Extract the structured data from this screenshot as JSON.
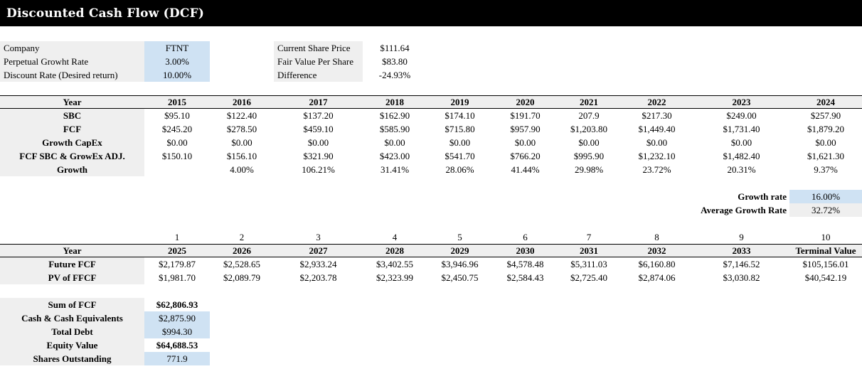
{
  "title": "Discounted Cash Flow (DCF)",
  "colors": {
    "input_blue": "#cfe2f3",
    "label_gray": "#efefef",
    "titlebar_black": "#000000"
  },
  "inputs": {
    "rows": [
      {
        "label": "Company",
        "value": "FTNT"
      },
      {
        "label": "Perpetual Growht Rate",
        "value": "3.00%"
      },
      {
        "label": "Discount Rate (Desired return)",
        "value": "10.00%"
      }
    ]
  },
  "valuation": {
    "rows": [
      {
        "label": "Current Share Price",
        "value": "$111.64"
      },
      {
        "label": "Fair Value Per Share",
        "value": "$83.80"
      },
      {
        "label": "Difference",
        "value": "-24.93%"
      }
    ]
  },
  "table1": {
    "row_header": "Year",
    "years": [
      "2015",
      "2016",
      "2017",
      "2018",
      "2019",
      "2020",
      "2021",
      "2022",
      "2023",
      "2024"
    ],
    "rows": [
      {
        "label": "SBC",
        "values": [
          "$95.10",
          "$122.40",
          "$137.20",
          "$162.90",
          "$174.10",
          "$191.70",
          "207.9",
          "$217.30",
          "$249.00",
          "$257.90"
        ]
      },
      {
        "label": "FCF",
        "values": [
          "$245.20",
          "$278.50",
          "$459.10",
          "$585.90",
          "$715.80",
          "$957.90",
          "$1,203.80",
          "$1,449.40",
          "$1,731.40",
          "$1,879.20"
        ]
      },
      {
        "label": "Growth CapEx",
        "values": [
          "$0.00",
          "$0.00",
          "$0.00",
          "$0.00",
          "$0.00",
          "$0.00",
          "$0.00",
          "$0.00",
          "$0.00",
          "$0.00"
        ]
      },
      {
        "label": "FCF SBC & GrowEx ADJ.",
        "values": [
          "$150.10",
          "$156.10",
          "$321.90",
          "$423.00",
          "$541.70",
          "$766.20",
          "$995.90",
          "$1,232.10",
          "$1,482.40",
          "$1,621.30"
        ]
      },
      {
        "label": "Growth",
        "values": [
          "",
          "4.00%",
          "106.21%",
          "31.41%",
          "28.06%",
          "41.44%",
          "29.98%",
          "23.72%",
          "20.31%",
          "9.37%"
        ]
      }
    ]
  },
  "growth": {
    "rate_label": "Growth rate",
    "rate_value": "16.00%",
    "avg_label": "Average Growth Rate",
    "avg_value": "32.72%"
  },
  "table2": {
    "index_row": [
      "1",
      "2",
      "3",
      "4",
      "5",
      "6",
      "7",
      "8",
      "9",
      "10"
    ],
    "row_header": "Year",
    "years": [
      "2025",
      "2026",
      "2027",
      "2028",
      "2029",
      "2030",
      "2031",
      "2032",
      "2033",
      "Terminal Value"
    ],
    "rows": [
      {
        "label": "Future FCF",
        "values": [
          "$2,179.87",
          "$2,528.65",
          "$2,933.24",
          "$3,402.55",
          "$3,946.96",
          "$4,578.48",
          "$5,311.03",
          "$6,160.80",
          "$7,146.52",
          "$105,156.01"
        ]
      },
      {
        "label": "PV of FFCF",
        "values": [
          "$1,981.70",
          "$2,089.79",
          "$2,203.78",
          "$2,323.99",
          "$2,450.75",
          "$2,584.43",
          "$2,725.40",
          "$2,874.06",
          "$3,030.82",
          "$40,542.19"
        ]
      }
    ]
  },
  "summary": {
    "rows": [
      {
        "label": "Sum of FCF",
        "value": "$62,806.93"
      },
      {
        "label": "Cash & Cash Equivalents",
        "value": "$2,875.90"
      },
      {
        "label": "Total Debt",
        "value": "$994.30"
      },
      {
        "label": "Equity Value",
        "value": "$64,688.53"
      },
      {
        "label": "Shares Outstanding",
        "value": "771.9"
      }
    ]
  }
}
